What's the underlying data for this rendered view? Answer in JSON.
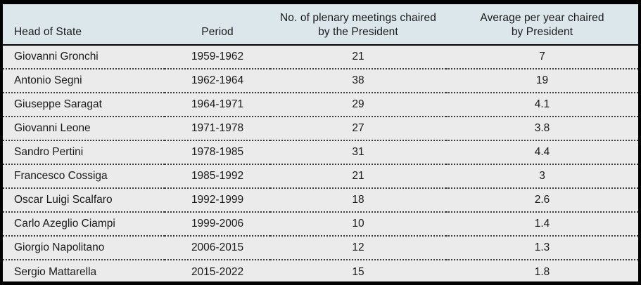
{
  "table": {
    "columns": [
      {
        "id": "head_of_state",
        "label": "Head of State",
        "align": "left"
      },
      {
        "id": "period",
        "label": "Period",
        "align": "center"
      },
      {
        "id": "meetings_chaired",
        "label": "No. of plenary meetings chaired\nby the President",
        "align": "center"
      },
      {
        "id": "average_per_year",
        "label": "Average per year chaired\nby President",
        "align": "center"
      }
    ],
    "rows": [
      [
        "Giovanni Gronchi",
        "1959-1962",
        "21",
        "7"
      ],
      [
        "Antonio Segni",
        "1962-1964",
        "38",
        "19"
      ],
      [
        "Giuseppe Saragat",
        "1964-1971",
        "29",
        "4.1"
      ],
      [
        "Giovanni Leone",
        "1971-1978",
        "27",
        "3.8"
      ],
      [
        "Sandro Pertini",
        "1978-1985",
        "31",
        "4.4"
      ],
      [
        "Francesco Cossiga",
        "1985-1992",
        "21",
        "3"
      ],
      [
        "Oscar Luigi Scalfaro",
        "1992-1999",
        "18",
        "2.6"
      ],
      [
        "Carlo Azeglio Ciampi",
        "1999-2006",
        "10",
        "1.4"
      ],
      [
        "Giorgio Napolitano",
        "2006-2015",
        "12",
        "1.3"
      ],
      [
        "Sergio Mattarella",
        "2015-2022",
        "15",
        "1.8"
      ]
    ]
  },
  "colors": {
    "header_background": "#dbe7eb",
    "row_background": "#ebebeb",
    "border": "#000000",
    "text": "#1a1a1a"
  },
  "chart_data": {
    "type": "table",
    "columns": [
      "Head of State",
      "Period",
      "No. of plenary meetings chaired by the President",
      "Average per year chaired by President"
    ],
    "rows": [
      [
        "Giovanni Gronchi",
        "1959-1962",
        21,
        7
      ],
      [
        "Antonio Segni",
        "1962-1964",
        38,
        19
      ],
      [
        "Giuseppe Saragat",
        "1964-1971",
        29,
        4.1
      ],
      [
        "Giovanni Leone",
        "1971-1978",
        27,
        3.8
      ],
      [
        "Sandro Pertini",
        "1978-1985",
        31,
        4.4
      ],
      [
        "Francesco Cossiga",
        "1985-1992",
        21,
        3
      ],
      [
        "Oscar Luigi Scalfaro",
        "1992-1999",
        18,
        2.6
      ],
      [
        "Carlo Azeglio Ciampi",
        "1999-2006",
        10,
        1.4
      ],
      [
        "Giorgio Napolitano",
        "2006-2015",
        12,
        1.3
      ],
      [
        "Sergio Mattarella",
        "2015-2022",
        15,
        1.8
      ]
    ]
  }
}
